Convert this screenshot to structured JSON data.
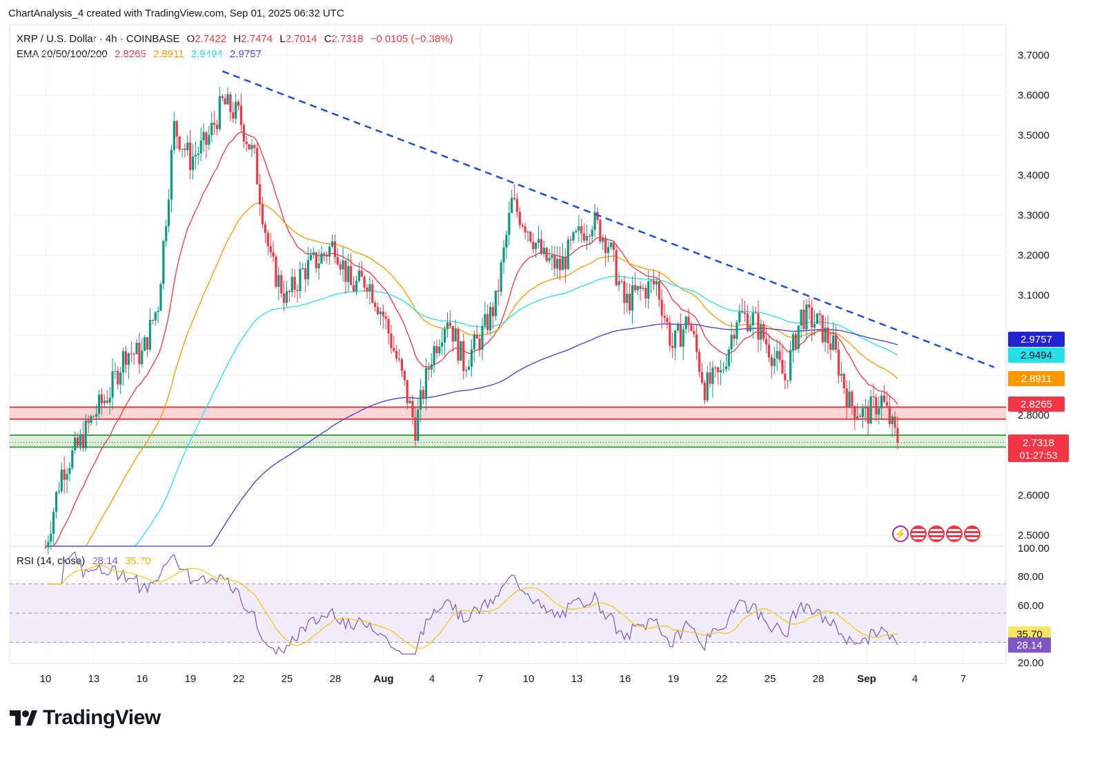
{
  "header": {
    "caption": "ChartAnalysis_4 created with TradingView.com, Sep 01, 2025 06:32 UTC",
    "symbol_line": "XRP / U.S. Dollar · 4h · COINBASE",
    "ohlc": {
      "o_label": "O",
      "o": "2.7422",
      "h_label": "H",
      "h": "2.7474",
      "l_label": "L",
      "l": "2.7014",
      "c_label": "C",
      "c": "2.7318",
      "change": "−0.0105 (−0.38%)"
    },
    "ema_label": "EMA 20/50/100/200",
    "ema_values": [
      "2.8265",
      "2.8911",
      "2.9494",
      "2.9757"
    ]
  },
  "colors": {
    "up": "#089981",
    "down": "#f23645",
    "ema20": "#f23645",
    "ema50": "#ff9800",
    "ema100": "#26e0e8",
    "ema200": "#3d3dd8",
    "trendline": "#1e4fd1",
    "rsi": "#7e57c2",
    "rsi_ma": "#f5c518",
    "resistance": "#e53935",
    "support": "#43a047"
  },
  "chart_data": [
    {
      "type": "candlestick",
      "title": "XRP / U.S. Dollar · 4h · COINBASE",
      "y_axis_ticks": [
        "3.7000",
        "3.6000",
        "3.5000",
        "3.4000",
        "3.3000",
        "3.2000",
        "3.1000",
        "2.8000",
        "2.6000",
        "2.5000"
      ],
      "ylim": [
        2.48,
        3.72
      ],
      "x_axis_ticks": [
        "10",
        "13",
        "16",
        "19",
        "22",
        "25",
        "28",
        "Aug",
        "4",
        "7",
        "10",
        "13",
        "16",
        "19",
        "22",
        "25",
        "28",
        "Sep",
        "4",
        "7"
      ],
      "price_path": [
        {
          "date": "Jul 10",
          "price": 2.47
        },
        {
          "date": "Jul 11",
          "price": 2.66
        },
        {
          "date": "Jul 12",
          "price": 2.72
        },
        {
          "date": "Jul 13",
          "price": 2.8
        },
        {
          "date": "Jul 14",
          "price": 2.86
        },
        {
          "date": "Jul 15",
          "price": 2.96
        },
        {
          "date": "Jul 16",
          "price": 2.95
        },
        {
          "date": "Jul 17",
          "price": 3.08
        },
        {
          "date": "Jul 18",
          "price": 3.52
        },
        {
          "date": "Jul 19",
          "price": 3.44
        },
        {
          "date": "Jul 20",
          "price": 3.48
        },
        {
          "date": "Jul 21",
          "price": 3.58
        },
        {
          "date": "Jul 22",
          "price": 3.55
        },
        {
          "date": "Jul 23",
          "price": 3.44
        },
        {
          "date": "Jul 24",
          "price": 3.18
        },
        {
          "date": "Jul 25",
          "price": 3.09
        },
        {
          "date": "Jul 26",
          "price": 3.16
        },
        {
          "date": "Jul 27",
          "price": 3.19
        },
        {
          "date": "Jul 28",
          "price": 3.23
        },
        {
          "date": "Jul 29",
          "price": 3.12
        },
        {
          "date": "Jul 30",
          "price": 3.14
        },
        {
          "date": "Jul 31",
          "price": 3.05
        },
        {
          "date": "Aug 1",
          "price": 2.92
        },
        {
          "date": "Aug 2",
          "price": 2.77
        },
        {
          "date": "Aug 3",
          "price": 2.95
        },
        {
          "date": "Aug 4",
          "price": 3.05
        },
        {
          "date": "Aug 5",
          "price": 2.93
        },
        {
          "date": "Aug 6",
          "price": 2.99
        },
        {
          "date": "Aug 7",
          "price": 3.08
        },
        {
          "date": "Aug 8",
          "price": 3.33
        },
        {
          "date": "Aug 9",
          "price": 3.27
        },
        {
          "date": "Aug 10",
          "price": 3.19
        },
        {
          "date": "Aug 11",
          "price": 3.17
        },
        {
          "date": "Aug 12",
          "price": 3.24
        },
        {
          "date": "Aug 13",
          "price": 3.29
        },
        {
          "date": "Aug 14",
          "price": 3.23
        },
        {
          "date": "Aug 15",
          "price": 3.08
        },
        {
          "date": "Aug 16",
          "price": 3.11
        },
        {
          "date": "Aug 17",
          "price": 3.13
        },
        {
          "date": "Aug 18",
          "price": 2.97
        },
        {
          "date": "Aug 19",
          "price": 3.04
        },
        {
          "date": "Aug 20",
          "price": 2.87
        },
        {
          "date": "Aug 21",
          "price": 2.9
        },
        {
          "date": "Aug 22",
          "price": 3.05
        },
        {
          "date": "Aug 23",
          "price": 3.04
        },
        {
          "date": "Aug 24",
          "price": 2.97
        },
        {
          "date": "Aug 25",
          "price": 2.89
        },
        {
          "date": "Aug 26",
          "price": 3.05
        },
        {
          "date": "Aug 27",
          "price": 3.03
        },
        {
          "date": "Aug 28",
          "price": 2.97
        },
        {
          "date": "Aug 29",
          "price": 2.83
        },
        {
          "date": "Aug 30",
          "price": 2.8
        },
        {
          "date": "Aug 31",
          "price": 2.84
        },
        {
          "date": "Sep 1",
          "price": 2.7318
        }
      ],
      "ema_series": [
        {
          "name": "EMA 20",
          "last": 2.8265
        },
        {
          "name": "EMA 50",
          "last": 2.8911
        },
        {
          "name": "EMA 100",
          "last": 2.9494
        },
        {
          "name": "EMA 200",
          "last": 2.9757
        }
      ],
      "resistance_zone": [
        2.79,
        2.82
      ],
      "support_zone": [
        2.72,
        2.75
      ],
      "trendline": [
        {
          "date": "Jul 21",
          "price": 3.66
        },
        {
          "date": "Sep 7",
          "price": 2.92
        }
      ],
      "price_labels": [
        "2.9757",
        "2.9494",
        "2.8911",
        "2.8265",
        "2.7318"
      ],
      "countdown": "01:27:53"
    },
    {
      "type": "line",
      "title": "RSI (14, close)",
      "values_label": [
        "28.14",
        "35.70"
      ],
      "y_axis_ticks": [
        "100.00",
        "80.00",
        "60.00",
        "20.00"
      ],
      "ylim": [
        20,
        100
      ],
      "bands": [
        30,
        50,
        70
      ],
      "last_rsi": 28.14,
      "last_rsi_ma": 35.7
    }
  ],
  "footer": {
    "brand": "TradingView"
  }
}
